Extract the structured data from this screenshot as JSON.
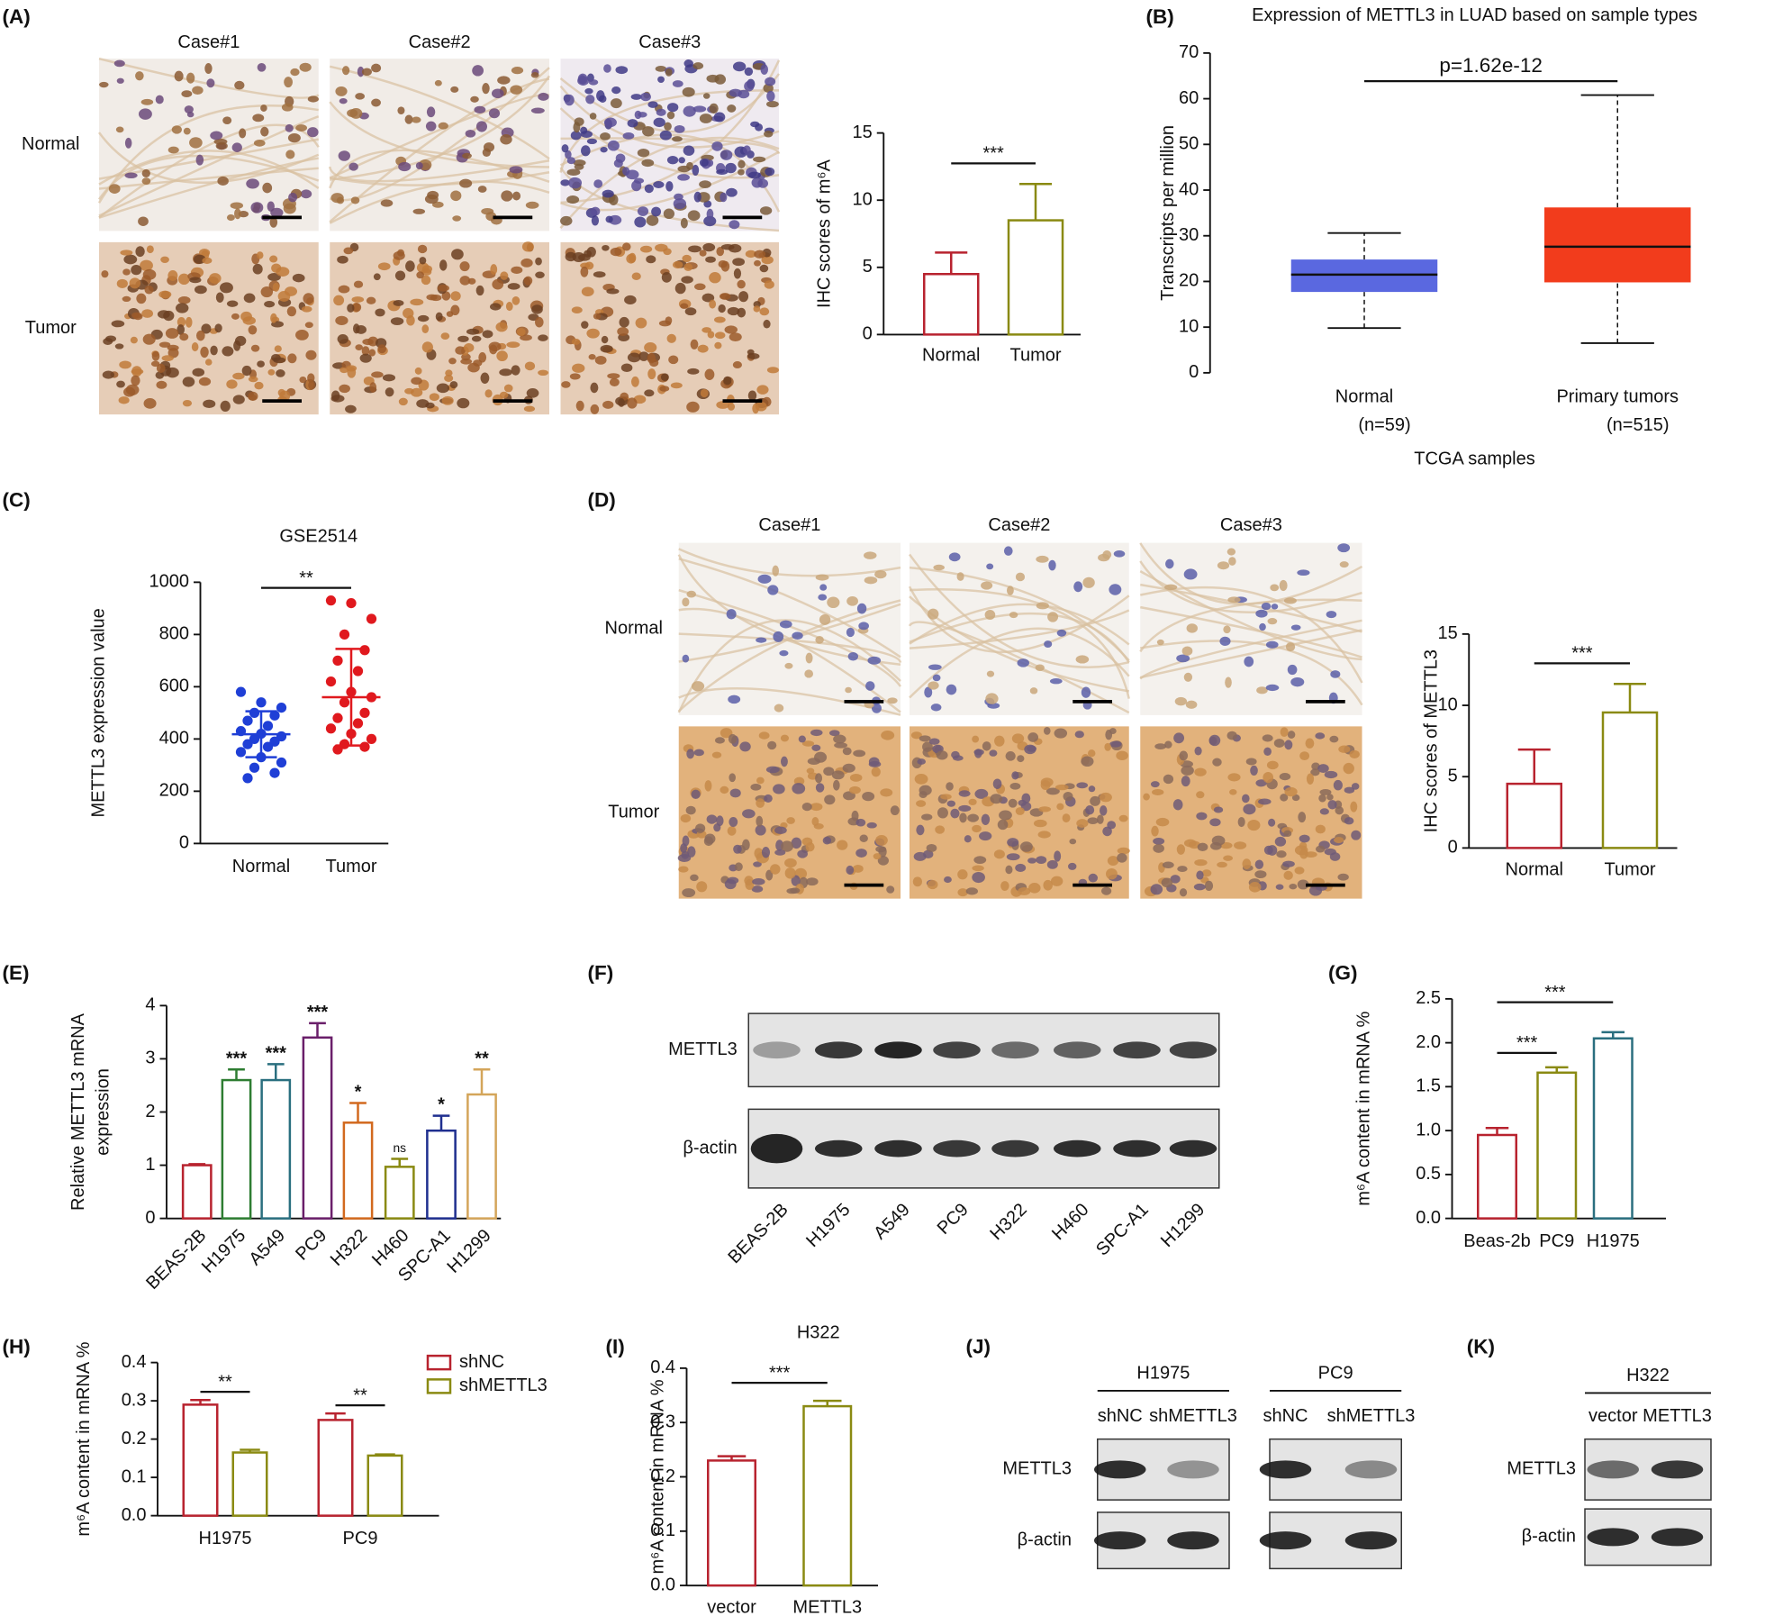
{
  "panel_labels": [
    "(A)",
    "(B)",
    "(C)",
    "(D)",
    "(E)",
    "(F)",
    "(G)",
    "(H)",
    "(I)",
    "(J)",
    "(K)"
  ],
  "micrographs": [
    {
      "columns": [
        "Case#1",
        "Case#2",
        "Case#3"
      ],
      "rows": [
        "Normal",
        "Tumor"
      ]
    },
    {
      "columns": [
        "Case#1",
        "Case#2",
        "Case#3"
      ],
      "rows": [
        "Normal",
        "Tumor"
      ]
    }
  ],
  "blots": [
    {
      "lanes": [
        "BEAS-2B",
        "H1975",
        "A549",
        "PC9",
        "H322",
        "H460",
        "SPC-A1",
        "H1299"
      ],
      "rows": [
        "METTL3",
        "β-actin"
      ]
    },
    {
      "groups": [
        {
          "name": "H1975",
          "lanes": [
            "shNC",
            "shMETTL3"
          ]
        },
        {
          "name": "PC9",
          "lanes": [
            "shNC",
            "shMETTL3"
          ]
        }
      ],
      "rows": [
        "METTL3",
        "β-actin"
      ]
    },
    {
      "groups": [
        {
          "name": "H322",
          "lanes": [
            "vector",
            "METTL3"
          ]
        }
      ],
      "rows": [
        "METTL3",
        "β-actin"
      ]
    }
  ],
  "chart_data": [
    {
      "type": "bar",
      "ylabel": "IHC scores of m⁶A",
      "categories": [
        "Normal",
        "Tumor"
      ],
      "values": [
        4.5,
        8.5
      ],
      "errors": [
        1.6,
        2.7
      ],
      "colors": [
        "#b8232f",
        "#8a8a12"
      ],
      "ylim": [
        0,
        15
      ],
      "yticks": [
        0,
        5,
        10,
        15
      ],
      "comparisons": [
        {
          "pair": [
            0,
            1
          ],
          "label": "***"
        }
      ]
    },
    {
      "type": "box",
      "title": "Expression of METTL3 in LUAD based on sample types",
      "ylabel": "Transcripts per million",
      "xlabel": "TCGA samples",
      "categories": [
        "Normal",
        "Primary tumors"
      ],
      "n_labels": [
        "(n=59)",
        "(n=515)"
      ],
      "boxes": [
        {
          "min": 9.8,
          "q1": 17.7,
          "median": 21.5,
          "q3": 24.8,
          "max": 30.6
        },
        {
          "min": 6.5,
          "q1": 19.8,
          "median": 27.6,
          "q3": 36.2,
          "max": 60.8
        }
      ],
      "colors": [
        "#5a68e0",
        "#f23c1c"
      ],
      "ylim": [
        0,
        70
      ],
      "yticks": [
        0,
        10,
        20,
        30,
        40,
        50,
        60,
        70
      ],
      "comparisons": [
        {
          "pair": [
            0,
            1
          ],
          "label": "p=1.62e-12"
        }
      ]
    },
    {
      "type": "scatter",
      "title": "GSE2514",
      "ylabel": "METTL3 expression value",
      "categories": [
        "Normal",
        "Tumor"
      ],
      "points": [
        [
          580,
          540,
          520,
          500,
          490,
          470,
          450,
          430,
          420,
          410,
          400,
          390,
          380,
          370,
          350,
          330,
          310,
          290,
          270,
          250
        ],
        [
          930,
          920,
          860,
          800,
          740,
          700,
          660,
          620,
          580,
          560,
          540,
          500,
          480,
          460,
          440,
          420,
          400,
          380,
          370,
          360
        ]
      ],
      "means": [
        418,
        560
      ],
      "sds": [
        88,
        185
      ],
      "colors": [
        "#1f3fd6",
        "#e0191e"
      ],
      "ylim": [
        0,
        1000
      ],
      "yticks": [
        0,
        200,
        400,
        600,
        800,
        1000
      ],
      "comparisons": [
        {
          "pair": [
            0,
            1
          ],
          "label": "**"
        }
      ]
    },
    {
      "type": "bar",
      "ylabel": "IHC scores of METTL3",
      "categories": [
        "Normal",
        "Tumor"
      ],
      "values": [
        4.5,
        9.5
      ],
      "errors": [
        2.4,
        2.0
      ],
      "colors": [
        "#b8232f",
        "#8a8a12"
      ],
      "ylim": [
        0,
        15
      ],
      "yticks": [
        0,
        5,
        10,
        15
      ],
      "comparisons": [
        {
          "pair": [
            0,
            1
          ],
          "label": "***"
        }
      ]
    },
    {
      "type": "bar",
      "ylabel": [
        "Relative METTL3 mRNA",
        "expression"
      ],
      "categories": [
        "BEAS-2B",
        "H1975",
        "A549",
        "PC9",
        "H322",
        "H460",
        "SPC-A1",
        "H1299"
      ],
      "values": [
        1.0,
        2.6,
        2.6,
        3.4,
        1.8,
        0.97,
        1.65,
        2.33
      ],
      "errors": [
        0.02,
        0.2,
        0.3,
        0.27,
        0.37,
        0.15,
        0.28,
        0.47
      ],
      "colors": [
        "#b8232f",
        "#2e7d32",
        "#2a6f7f",
        "#6a1f6a",
        "#d2691e",
        "#8a8a12",
        "#1f2f8f",
        "#d4a55a"
      ],
      "annotations": [
        null,
        "***",
        "***",
        "***",
        "*",
        "ns",
        "*",
        "**"
      ],
      "ylim": [
        0,
        4
      ],
      "yticks": [
        0,
        1,
        2,
        3,
        4
      ]
    },
    {
      "type": "bar",
      "ylabel": "m⁶A content in mRNA %",
      "categories": [
        "Beas-2b",
        "PC9",
        "H1975"
      ],
      "values": [
        0.95,
        1.66,
        2.05
      ],
      "errors": [
        0.08,
        0.06,
        0.07
      ],
      "colors": [
        "#b8232f",
        "#8a8a12",
        "#2a6f7f"
      ],
      "ylim": [
        0,
        2.5
      ],
      "yticks": [
        {
          "value": 0,
          "label": "0.0"
        },
        0.5,
        {
          "value": 1,
          "label": "1.0"
        },
        1.5,
        {
          "value": 2,
          "label": "2.0"
        },
        2.5
      ],
      "comparisons": [
        {
          "pair": [
            0,
            1
          ],
          "label": "***"
        },
        {
          "pair": [
            0,
            2
          ],
          "label": "***"
        }
      ]
    },
    {
      "type": "bar",
      "ylabel": "m⁶A content in mRNA %",
      "categories": [
        "H1975",
        "PC9"
      ],
      "series": [
        {
          "name": "shNC",
          "color": "#b8232f",
          "values": [
            0.29,
            0.25
          ],
          "errors": [
            0.012,
            0.017
          ]
        },
        {
          "name": "shMETTL3",
          "color": "#8a8a12",
          "values": [
            0.165,
            0.157
          ],
          "errors": [
            0.007,
            0.003
          ]
        }
      ],
      "annotations": [
        "**",
        "**"
      ],
      "ylim": [
        0,
        0.4
      ],
      "yticks": [
        {
          "value": 0,
          "label": "0.0"
        },
        0.1,
        0.2,
        0.3,
        0.4
      ],
      "legend": "top-right"
    },
    {
      "type": "bar",
      "title": "H322",
      "ylabel": "m⁶A content in mRNA %",
      "categories": [
        "vector",
        "METTL3"
      ],
      "values": [
        0.23,
        0.33
      ],
      "errors": [
        0.008,
        0.01
      ],
      "colors": [
        "#b8232f",
        "#8a8a12"
      ],
      "ylim": [
        0,
        0.4
      ],
      "yticks": [
        {
          "value": 0,
          "label": "0.0"
        },
        0.1,
        0.2,
        0.3,
        0.4
      ],
      "comparisons": [
        {
          "pair": [
            0,
            1
          ],
          "label": "***"
        }
      ]
    }
  ]
}
